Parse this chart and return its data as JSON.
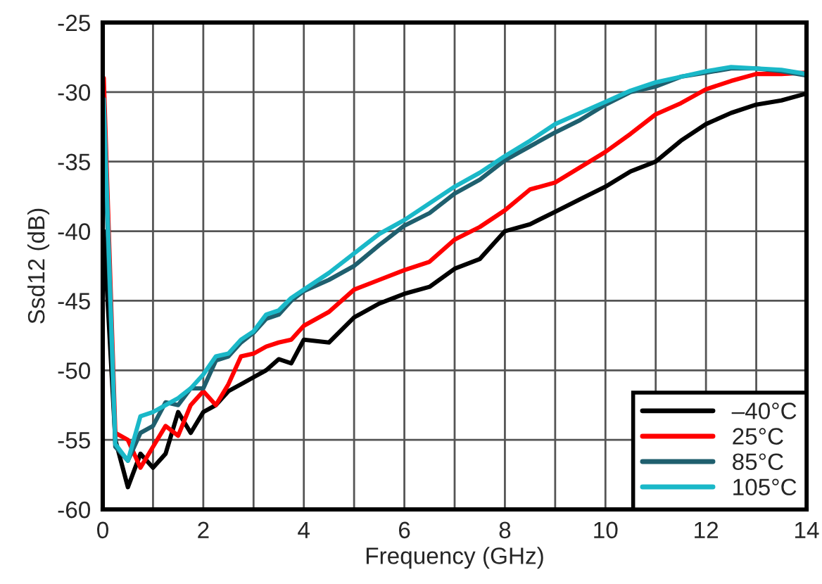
{
  "chart_data": {
    "type": "line",
    "xlabel": "Frequency (GHz)",
    "ylabel": "Ssd12 (dB)",
    "x": [
      0.02,
      0.25,
      0.5,
      0.75,
      1,
      1.25,
      1.5,
      1.75,
      2,
      2.25,
      2.5,
      2.75,
      3,
      3.25,
      3.5,
      3.75,
      4,
      4.5,
      5,
      5.5,
      6,
      6.5,
      7,
      7.5,
      8,
      8.5,
      9,
      9.5,
      10,
      10.5,
      11,
      11.5,
      12,
      12.5,
      13,
      13.5,
      14
    ],
    "series": [
      {
        "name": "–40°C",
        "color": "#000000",
        "values": [
          -40,
          -55,
          -58.4,
          -56,
          -57,
          -56,
          -53,
          -54.5,
          -53,
          -52.5,
          -51.5,
          -51,
          -50.5,
          -50,
          -49.2,
          -49.5,
          -47.8,
          -48,
          -46.2,
          -45.2,
          -44.5,
          -44,
          -42.7,
          -42,
          -40,
          -39.5,
          -38.6,
          -37.7,
          -36.8,
          -35.7,
          -35,
          -33.5,
          -32.3,
          -31.5,
          -30.9,
          -30.6,
          -30.1
        ]
      },
      {
        "name": "25°C",
        "color": "#ff0000",
        "values": [
          -29,
          -54.5,
          -55,
          -57,
          -55.5,
          -54,
          -54.7,
          -52.5,
          -51.5,
          -52.5,
          -51,
          -49,
          -48.8,
          -48.3,
          -48,
          -47.8,
          -46.8,
          -45.8,
          -44.2,
          -43.5,
          -42.8,
          -42.2,
          -40.6,
          -39.7,
          -38.5,
          -37,
          -36.5,
          -35.4,
          -34.3,
          -33,
          -31.6,
          -30.8,
          -29.8,
          -29.2,
          -28.7,
          -28.7,
          -28.6
        ]
      },
      {
        "name": "85°C",
        "color": "#1f5f6e",
        "values": [
          -32,
          -55.5,
          -56.5,
          -54.5,
          -54,
          -52.3,
          -52.5,
          -51.3,
          -51.3,
          -49.3,
          -49,
          -48,
          -47.3,
          -46.3,
          -46,
          -45,
          -44.3,
          -43.5,
          -42.5,
          -41,
          -39.6,
          -38.7,
          -37.3,
          -36.3,
          -34.9,
          -33.9,
          -32.9,
          -32,
          -30.9,
          -30,
          -29.6,
          -28.9,
          -28.6,
          -28.3,
          -28.3,
          -28.5,
          -28.8
        ]
      },
      {
        "name": "105°C",
        "color": "#1ab8c8",
        "values": [
          -30.5,
          -55.3,
          -56.5,
          -53.3,
          -53,
          -52.5,
          -52,
          -51.3,
          -50.3,
          -49,
          -48.8,
          -47.8,
          -47.2,
          -46,
          -45.7,
          -44.8,
          -44.2,
          -43,
          -41.6,
          -40.2,
          -39.2,
          -38,
          -36.8,
          -35.8,
          -34.6,
          -33.5,
          -32.3,
          -31.5,
          -30.7,
          -29.9,
          -29.3,
          -28.9,
          -28.5,
          -28.2,
          -28.3,
          -28.4,
          -28.7
        ]
      }
    ],
    "xlim": [
      0,
      14
    ],
    "ylim": [
      -60,
      -25
    ],
    "xticks": [
      0,
      2,
      4,
      6,
      8,
      10,
      12,
      14
    ],
    "yticks": [
      -60,
      -55,
      -50,
      -45,
      -40,
      -35,
      -30,
      -25
    ],
    "grid": true,
    "legend": "bottom right"
  }
}
